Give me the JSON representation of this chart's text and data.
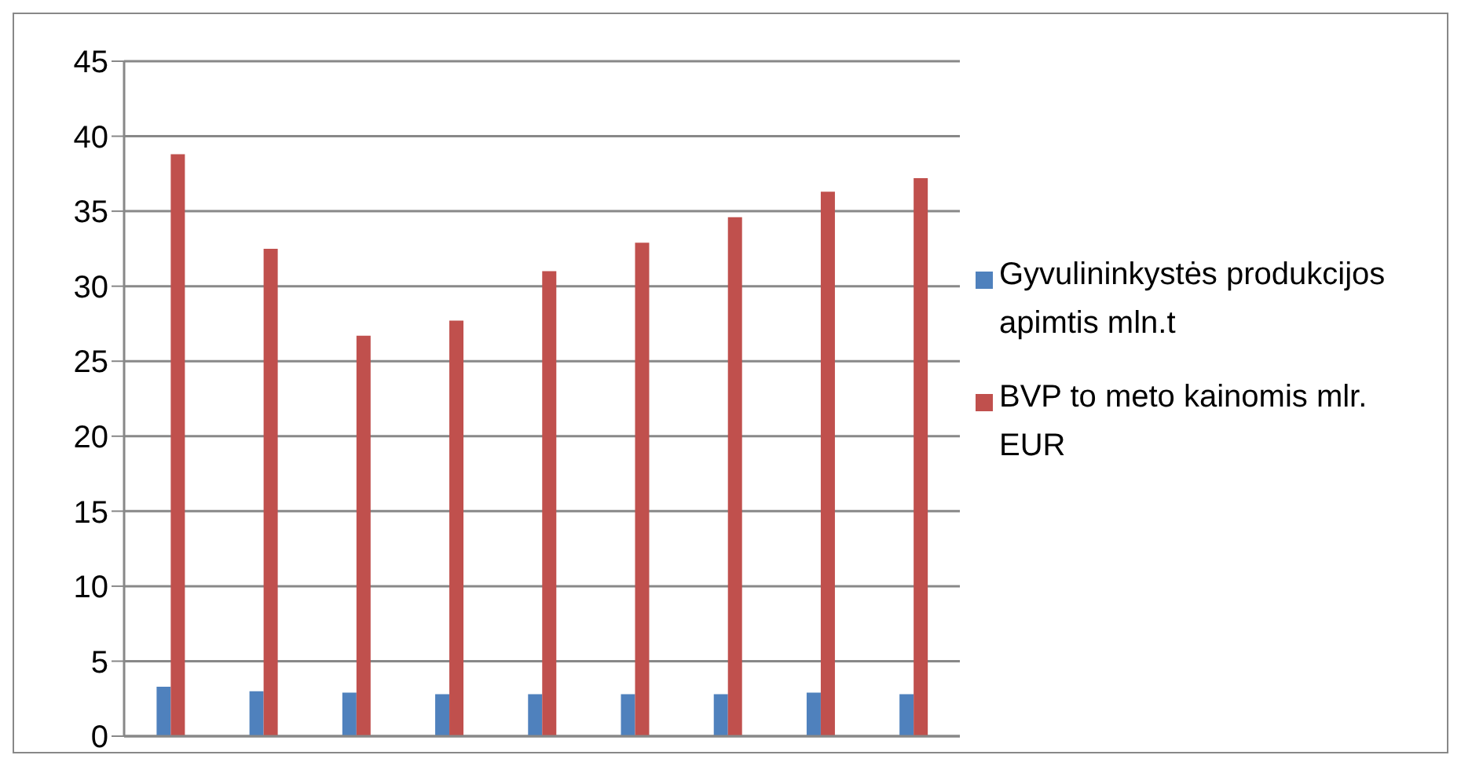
{
  "chart_data": {
    "type": "bar",
    "categories": [
      null,
      null,
      null,
      null,
      null,
      null,
      null,
      null,
      null
    ],
    "series": [
      {
        "name": "Gyvulininkystės produkcijos apimtis mln.t",
        "color": "#4f81bd",
        "values": [
          3.3,
          3.0,
          2.9,
          2.8,
          2.8,
          2.8,
          2.8,
          2.9,
          2.8
        ]
      },
      {
        "name": "BVP to meto kainomis mlr. EUR",
        "color": "#c0504d",
        "values": [
          38.8,
          32.5,
          26.7,
          27.7,
          31.0,
          32.9,
          34.6,
          36.3,
          37.2
        ]
      }
    ],
    "ylim": [
      0,
      45
    ],
    "yticks": [
      0,
      5,
      10,
      15,
      20,
      25,
      30,
      35,
      40,
      45
    ],
    "grid": "y",
    "legend": "right"
  }
}
